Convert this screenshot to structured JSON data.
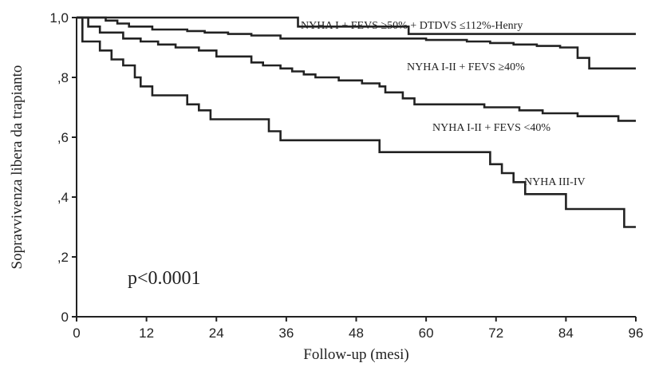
{
  "chart_data": {
    "type": "line",
    "step": true,
    "title": "",
    "xlabel": "Follow-up (mesi)",
    "ylabel": "Sopravvivenza libera da trapianto",
    "xlim": [
      0,
      96
    ],
    "ylim": [
      0,
      1
    ],
    "xticks": [
      0,
      12,
      24,
      36,
      48,
      60,
      72,
      84,
      96
    ],
    "xtick_labels": [
      "0",
      "12",
      "24",
      "36",
      "48",
      "60",
      "72",
      "84",
      "96"
    ],
    "yticks": [
      0,
      0.2,
      0.4,
      0.6,
      0.8,
      1.0
    ],
    "ytick_labels": [
      "0",
      ",2",
      ",4",
      ",6",
      ",8",
      "1,0"
    ],
    "grid": false,
    "annotation": "p<0.0001",
    "series": [
      {
        "name": "NYHA I + FEVS ≥50% + DTDVS ≤112%-Henry",
        "points": [
          [
            0,
            1.0
          ],
          [
            38,
            1.0
          ],
          [
            38,
            0.97
          ],
          [
            57,
            0.97
          ],
          [
            57,
            0.945
          ],
          [
            96,
            0.945
          ]
        ]
      },
      {
        "name": "NYHA I-II + FEVS ≥40%",
        "points": [
          [
            0,
            1.0
          ],
          [
            5,
            1.0
          ],
          [
            5,
            0.99
          ],
          [
            7,
            0.99
          ],
          [
            7,
            0.98
          ],
          [
            9,
            0.98
          ],
          [
            9,
            0.97
          ],
          [
            13,
            0.97
          ],
          [
            13,
            0.96
          ],
          [
            19,
            0.96
          ],
          [
            19,
            0.955
          ],
          [
            22,
            0.955
          ],
          [
            22,
            0.95
          ],
          [
            26,
            0.95
          ],
          [
            26,
            0.945
          ],
          [
            30,
            0.945
          ],
          [
            30,
            0.94
          ],
          [
            35,
            0.94
          ],
          [
            35,
            0.93
          ],
          [
            60,
            0.93
          ],
          [
            60,
            0.925
          ],
          [
            67,
            0.925
          ],
          [
            67,
            0.92
          ],
          [
            71,
            0.92
          ],
          [
            71,
            0.915
          ],
          [
            75,
            0.915
          ],
          [
            75,
            0.91
          ],
          [
            79,
            0.91
          ],
          [
            79,
            0.905
          ],
          [
            83,
            0.905
          ],
          [
            83,
            0.9
          ],
          [
            86,
            0.9
          ],
          [
            86,
            0.865
          ],
          [
            88,
            0.865
          ],
          [
            88,
            0.83
          ],
          [
            96,
            0.83
          ]
        ]
      },
      {
        "name": "NYHA I-II + FEVS <40%",
        "points": [
          [
            0,
            1.0
          ],
          [
            2,
            1.0
          ],
          [
            2,
            0.97
          ],
          [
            4,
            0.97
          ],
          [
            4,
            0.95
          ],
          [
            8,
            0.95
          ],
          [
            8,
            0.93
          ],
          [
            11,
            0.93
          ],
          [
            11,
            0.92
          ],
          [
            14,
            0.92
          ],
          [
            14,
            0.91
          ],
          [
            17,
            0.91
          ],
          [
            17,
            0.9
          ],
          [
            21,
            0.9
          ],
          [
            21,
            0.89
          ],
          [
            24,
            0.89
          ],
          [
            24,
            0.87
          ],
          [
            30,
            0.87
          ],
          [
            30,
            0.85
          ],
          [
            32,
            0.85
          ],
          [
            32,
            0.84
          ],
          [
            35,
            0.84
          ],
          [
            35,
            0.83
          ],
          [
            37,
            0.83
          ],
          [
            37,
            0.82
          ],
          [
            39,
            0.82
          ],
          [
            39,
            0.81
          ],
          [
            41,
            0.81
          ],
          [
            41,
            0.8
          ],
          [
            45,
            0.8
          ],
          [
            45,
            0.79
          ],
          [
            49,
            0.79
          ],
          [
            49,
            0.78
          ],
          [
            52,
            0.78
          ],
          [
            52,
            0.77
          ],
          [
            53,
            0.77
          ],
          [
            53,
            0.75
          ],
          [
            56,
            0.75
          ],
          [
            56,
            0.73
          ],
          [
            58,
            0.73
          ],
          [
            58,
            0.71
          ],
          [
            70,
            0.71
          ],
          [
            70,
            0.7
          ],
          [
            76,
            0.7
          ],
          [
            76,
            0.69
          ],
          [
            80,
            0.69
          ],
          [
            80,
            0.68
          ],
          [
            86,
            0.68
          ],
          [
            86,
            0.67
          ],
          [
            93,
            0.67
          ],
          [
            93,
            0.655
          ],
          [
            96,
            0.655
          ]
        ]
      },
      {
        "name": "NYHA III-IV",
        "points": [
          [
            0,
            1.0
          ],
          [
            1,
            1.0
          ],
          [
            1,
            0.92
          ],
          [
            4,
            0.92
          ],
          [
            4,
            0.89
          ],
          [
            6,
            0.89
          ],
          [
            6,
            0.86
          ],
          [
            8,
            0.86
          ],
          [
            8,
            0.84
          ],
          [
            10,
            0.84
          ],
          [
            10,
            0.8
          ],
          [
            11,
            0.8
          ],
          [
            11,
            0.77
          ],
          [
            13,
            0.77
          ],
          [
            13,
            0.74
          ],
          [
            19,
            0.74
          ],
          [
            19,
            0.71
          ],
          [
            21,
            0.71
          ],
          [
            21,
            0.69
          ],
          [
            23,
            0.69
          ],
          [
            23,
            0.66
          ],
          [
            33,
            0.66
          ],
          [
            33,
            0.62
          ],
          [
            35,
            0.62
          ],
          [
            35,
            0.59
          ],
          [
            52,
            0.59
          ],
          [
            52,
            0.55
          ],
          [
            71,
            0.55
          ],
          [
            71,
            0.51
          ],
          [
            73,
            0.51
          ],
          [
            73,
            0.48
          ],
          [
            75,
            0.48
          ],
          [
            75,
            0.45
          ],
          [
            77,
            0.45
          ],
          [
            77,
            0.41
          ],
          [
            84,
            0.41
          ],
          [
            84,
            0.36
          ],
          [
            94,
            0.36
          ],
          [
            94,
            0.3
          ],
          [
            96,
            0.3
          ]
        ]
      }
    ]
  }
}
